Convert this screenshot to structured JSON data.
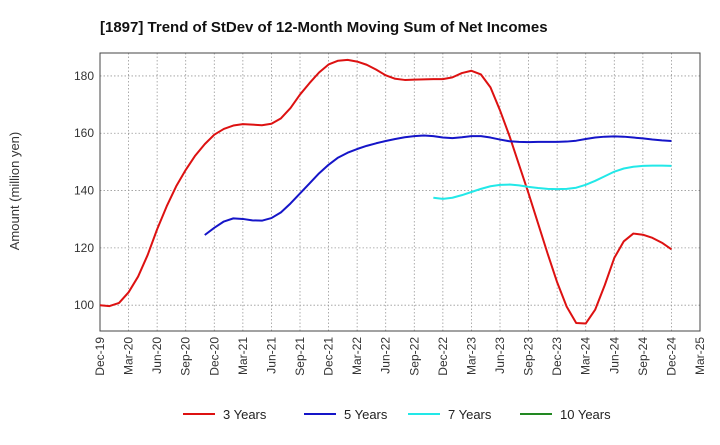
{
  "chart_data": {
    "type": "line",
    "title": "[1897]  Trend of StDev of 12-Month Moving Sum of Net Incomes",
    "ylabel": "Amount (million yen)",
    "xlabel": "",
    "ylim": [
      91,
      188
    ],
    "yticks": [
      100,
      120,
      140,
      160,
      180
    ],
    "x_tick_labels": [
      "Dec-19",
      "Mar-20",
      "Jun-20",
      "Sep-20",
      "Dec-20",
      "Mar-21",
      "Jun-21",
      "Sep-21",
      "Dec-21",
      "Mar-22",
      "Jun-22",
      "Sep-22",
      "Dec-22",
      "Mar-23",
      "Jun-23",
      "Sep-23",
      "Dec-23",
      "Mar-24",
      "Jun-24",
      "Sep-24",
      "Dec-24",
      "Mar-25"
    ],
    "grid": true,
    "legend_position": "bottom",
    "series": [
      {
        "name": "3 Years",
        "color": "#dd1111",
        "values": [
          {
            "x": "Dec-19",
            "y": 100
          },
          {
            "x": "Jan-20",
            "y": 99.7
          },
          {
            "x": "Feb-20",
            "y": 100.8
          },
          {
            "x": "Mar-20",
            "y": 104.5
          },
          {
            "x": "Apr-20",
            "y": 110
          },
          {
            "x": "May-20",
            "y": 117.5
          },
          {
            "x": "Jun-20",
            "y": 126.5
          },
          {
            "x": "Jul-20",
            "y": 134.5
          },
          {
            "x": "Aug-20",
            "y": 141.5
          },
          {
            "x": "Sep-20",
            "y": 147.2
          },
          {
            "x": "Oct-20",
            "y": 152.2
          },
          {
            "x": "Nov-20",
            "y": 156.2
          },
          {
            "x": "Dec-20",
            "y": 159.5
          },
          {
            "x": "Jan-21",
            "y": 161.5
          },
          {
            "x": "Feb-21",
            "y": 162.7
          },
          {
            "x": "Mar-21",
            "y": 163.2
          },
          {
            "x": "Apr-21",
            "y": 163
          },
          {
            "x": "May-21",
            "y": 162.8
          },
          {
            "x": "Jun-21",
            "y": 163.3
          },
          {
            "x": "Jul-21",
            "y": 165.2
          },
          {
            "x": "Aug-21",
            "y": 168.8
          },
          {
            "x": "Sep-21",
            "y": 173.5
          },
          {
            "x": "Oct-21",
            "y": 177.5
          },
          {
            "x": "Nov-21",
            "y": 181.2
          },
          {
            "x": "Dec-21",
            "y": 184
          },
          {
            "x": "Jan-22",
            "y": 185.3
          },
          {
            "x": "Feb-22",
            "y": 185.6
          },
          {
            "x": "Mar-22",
            "y": 185
          },
          {
            "x": "Apr-22",
            "y": 183.9
          },
          {
            "x": "May-22",
            "y": 182.2
          },
          {
            "x": "Jun-22",
            "y": 180.2
          },
          {
            "x": "Jul-22",
            "y": 179
          },
          {
            "x": "Aug-22",
            "y": 178.6
          },
          {
            "x": "Sep-22",
            "y": 178.7
          },
          {
            "x": "Oct-22",
            "y": 178.8
          },
          {
            "x": "Nov-22",
            "y": 178.9
          },
          {
            "x": "Dec-22",
            "y": 178.9
          },
          {
            "x": "Jan-23",
            "y": 179.5
          },
          {
            "x": "Feb-23",
            "y": 181
          },
          {
            "x": "Mar-23",
            "y": 181.8
          },
          {
            "x": "Apr-23",
            "y": 180.5
          },
          {
            "x": "May-23",
            "y": 176
          },
          {
            "x": "Jun-23",
            "y": 168
          },
          {
            "x": "Jul-23",
            "y": 159
          },
          {
            "x": "Aug-23",
            "y": 149
          },
          {
            "x": "Sep-23",
            "y": 139
          },
          {
            "x": "Oct-23",
            "y": 128.5
          },
          {
            "x": "Nov-23",
            "y": 118
          },
          {
            "x": "Dec-23",
            "y": 108
          },
          {
            "x": "Jan-24",
            "y": 99.5
          },
          {
            "x": "Feb-24",
            "y": 93.8
          },
          {
            "x": "Mar-24",
            "y": 93.6
          },
          {
            "x": "Apr-24",
            "y": 98.5
          },
          {
            "x": "May-24",
            "y": 107
          },
          {
            "x": "Jun-24",
            "y": 116.5
          },
          {
            "x": "Jul-24",
            "y": 122.3
          },
          {
            "x": "Aug-24",
            "y": 125
          },
          {
            "x": "Sep-24",
            "y": 124.6
          },
          {
            "x": "Oct-24",
            "y": 123.5
          },
          {
            "x": "Nov-24",
            "y": 121.8
          },
          {
            "x": "Dec-24",
            "y": 119.5
          }
        ]
      },
      {
        "name": "5 Years",
        "color": "#1515c8",
        "values": [
          {
            "x": "Nov-20",
            "y": 124.5
          },
          {
            "x": "Dec-20",
            "y": 127
          },
          {
            "x": "Jan-21",
            "y": 129.2
          },
          {
            "x": "Feb-21",
            "y": 130.3
          },
          {
            "x": "Mar-21",
            "y": 130.1
          },
          {
            "x": "Apr-21",
            "y": 129.6
          },
          {
            "x": "May-21",
            "y": 129.5
          },
          {
            "x": "Jun-21",
            "y": 130.4
          },
          {
            "x": "Jul-21",
            "y": 132.4
          },
          {
            "x": "Aug-21",
            "y": 135.5
          },
          {
            "x": "Sep-21",
            "y": 139
          },
          {
            "x": "Oct-21",
            "y": 142.5
          },
          {
            "x": "Nov-21",
            "y": 146
          },
          {
            "x": "Dec-21",
            "y": 149
          },
          {
            "x": "Jan-22",
            "y": 151.5
          },
          {
            "x": "Feb-22",
            "y": 153.2
          },
          {
            "x": "Mar-22",
            "y": 154.5
          },
          {
            "x": "Apr-22",
            "y": 155.6
          },
          {
            "x": "May-22",
            "y": 156.5
          },
          {
            "x": "Jun-22",
            "y": 157.3
          },
          {
            "x": "Jul-22",
            "y": 158
          },
          {
            "x": "Aug-22",
            "y": 158.6
          },
          {
            "x": "Sep-22",
            "y": 159
          },
          {
            "x": "Oct-22",
            "y": 159.2
          },
          {
            "x": "Nov-22",
            "y": 159
          },
          {
            "x": "Dec-22",
            "y": 158.5
          },
          {
            "x": "Jan-23",
            "y": 158.3
          },
          {
            "x": "Feb-23",
            "y": 158.6
          },
          {
            "x": "Mar-23",
            "y": 159
          },
          {
            "x": "Apr-23",
            "y": 159
          },
          {
            "x": "May-23",
            "y": 158.5
          },
          {
            "x": "Jun-23",
            "y": 157.8
          },
          {
            "x": "Jul-23",
            "y": 157.2
          },
          {
            "x": "Aug-23",
            "y": 157
          },
          {
            "x": "Sep-23",
            "y": 156.9
          },
          {
            "x": "Oct-23",
            "y": 157
          },
          {
            "x": "Nov-23",
            "y": 157
          },
          {
            "x": "Dec-23",
            "y": 157
          },
          {
            "x": "Jan-24",
            "y": 157.1
          },
          {
            "x": "Feb-24",
            "y": 157.4
          },
          {
            "x": "Mar-24",
            "y": 158
          },
          {
            "x": "Apr-24",
            "y": 158.5
          },
          {
            "x": "May-24",
            "y": 158.8
          },
          {
            "x": "Jun-24",
            "y": 158.9
          },
          {
            "x": "Jul-24",
            "y": 158.8
          },
          {
            "x": "Aug-24",
            "y": 158.5
          },
          {
            "x": "Sep-24",
            "y": 158.2
          },
          {
            "x": "Oct-24",
            "y": 157.8
          },
          {
            "x": "Nov-24",
            "y": 157.5
          },
          {
            "x": "Dec-24",
            "y": 157.3
          }
        ]
      },
      {
        "name": "7 Years",
        "color": "#22e8e8",
        "values": [
          {
            "x": "Nov-22",
            "y": 137.5
          },
          {
            "x": "Dec-22",
            "y": 137.1
          },
          {
            "x": "Jan-23",
            "y": 137.5
          },
          {
            "x": "Feb-23",
            "y": 138.4
          },
          {
            "x": "Mar-23",
            "y": 139.5
          },
          {
            "x": "Apr-23",
            "y": 140.6
          },
          {
            "x": "May-23",
            "y": 141.5
          },
          {
            "x": "Jun-23",
            "y": 142
          },
          {
            "x": "Jul-23",
            "y": 142.1
          },
          {
            "x": "Aug-23",
            "y": 141.8
          },
          {
            "x": "Sep-23",
            "y": 141.3
          },
          {
            "x": "Oct-23",
            "y": 140.9
          },
          {
            "x": "Nov-23",
            "y": 140.6
          },
          {
            "x": "Dec-23",
            "y": 140.5
          },
          {
            "x": "Jan-24",
            "y": 140.6
          },
          {
            "x": "Feb-24",
            "y": 141
          },
          {
            "x": "Mar-24",
            "y": 142
          },
          {
            "x": "Apr-24",
            "y": 143.4
          },
          {
            "x": "May-24",
            "y": 145
          },
          {
            "x": "Jun-24",
            "y": 146.6
          },
          {
            "x": "Jul-24",
            "y": 147.7
          },
          {
            "x": "Aug-24",
            "y": 148.3
          },
          {
            "x": "Sep-24",
            "y": 148.6
          },
          {
            "x": "Oct-24",
            "y": 148.7
          },
          {
            "x": "Nov-24",
            "y": 148.7
          },
          {
            "x": "Dec-24",
            "y": 148.6
          }
        ]
      },
      {
        "name": "10 Years",
        "color": "#228822",
        "values": []
      }
    ]
  }
}
